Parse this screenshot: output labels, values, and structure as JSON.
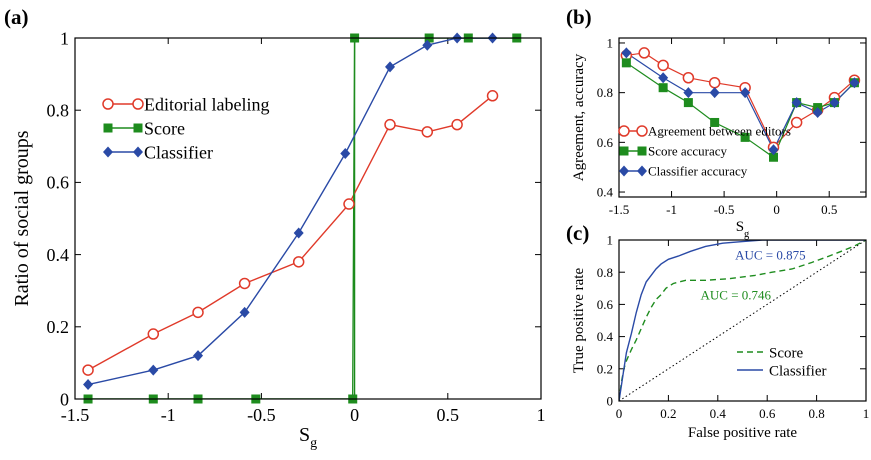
{
  "chart_data": [
    {
      "panel": "(a)",
      "type": "line",
      "xlabel": "S",
      "xlabel_sub": "g",
      "ylabel": "Ratio of social groups",
      "xlim": [
        -1.5,
        1
      ],
      "ylim": [
        0,
        1
      ],
      "xticks": [
        -1.5,
        -1,
        -0.5,
        0,
        0.5,
        1
      ],
      "xtick_labels": [
        "-1.5",
        "-1",
        "-0.5",
        "0",
        "0.5",
        "1"
      ],
      "yticks": [
        0,
        0.2,
        0.4,
        0.6,
        0.8,
        1
      ],
      "ytick_labels": [
        "0",
        "0.2",
        "0.4",
        "0.6",
        "0.8",
        "1"
      ],
      "legend_position": "center-left",
      "vline_x": 0,
      "vline_color": "#1a8a1a",
      "series": [
        {
          "name": "Editorial labeling",
          "marker": "circle-open",
          "color": "#e03a2a",
          "x": [
            -1.43,
            -1.08,
            -0.84,
            -0.59,
            -0.3,
            -0.03,
            0.19,
            0.39,
            0.55,
            0.74
          ],
          "y": [
            0.08,
            0.18,
            0.24,
            0.32,
            0.38,
            0.54,
            0.76,
            0.74,
            0.76,
            0.84
          ]
        },
        {
          "name": "Score",
          "marker": "square",
          "color": "#1e8c1e",
          "x": [
            -1.43,
            -1.08,
            -0.84,
            -0.53,
            -0.01,
            0.0,
            0.4,
            0.61,
            0.87
          ],
          "y": [
            0,
            0,
            0,
            0,
            0,
            1,
            1,
            1,
            1
          ]
        },
        {
          "name": "Classifier",
          "marker": "diamond",
          "color": "#2a4aa6",
          "x": [
            -1.43,
            -1.08,
            -0.84,
            -0.59,
            -0.3,
            -0.05,
            0.19,
            0.39,
            0.55,
            0.74
          ],
          "y": [
            0.04,
            0.08,
            0.12,
            0.24,
            0.46,
            0.68,
            0.92,
            0.98,
            1.0,
            1.0
          ]
        }
      ]
    },
    {
      "panel": "(b)",
      "type": "line",
      "xlabel": "S",
      "xlabel_sub": "g",
      "ylabel": "Agreement, accuracy",
      "xlim": [
        -1.5,
        0.85
      ],
      "ylim": [
        0.38,
        1.02
      ],
      "xticks": [
        -1.5,
        -1,
        -0.5,
        0,
        0.5
      ],
      "xtick_labels": [
        "-1.5",
        "-1",
        "-0.5",
        "0",
        "0.5"
      ],
      "yticks": [
        0.4,
        0.6,
        0.8,
        1
      ],
      "ytick_labels": [
        "0.4",
        "0.6",
        "0.8",
        "1"
      ],
      "legend_position": "bottom",
      "series": [
        {
          "name": "Agreement between editors",
          "marker": "circle-open",
          "color": "#e03a2a",
          "x": [
            -1.43,
            -1.26,
            -1.08,
            -0.84,
            -0.59,
            -0.3,
            -0.03,
            0.19,
            0.39,
            0.55,
            0.74
          ],
          "y": [
            0.95,
            0.96,
            0.91,
            0.86,
            0.84,
            0.82,
            0.58,
            0.68,
            0.73,
            0.78,
            0.85
          ]
        },
        {
          "name": "Score accuracy",
          "marker": "square",
          "color": "#1e8c1e",
          "x": [
            -1.43,
            -1.08,
            -0.84,
            -0.59,
            -0.3,
            -0.03,
            0.19,
            0.39,
            0.55,
            0.74
          ],
          "y": [
            0.92,
            0.82,
            0.76,
            0.68,
            0.62,
            0.54,
            0.76,
            0.74,
            0.76,
            0.84
          ]
        },
        {
          "name": "Classifier accuracy",
          "marker": "diamond",
          "color": "#2a4aa6",
          "x": [
            -1.43,
            -1.08,
            -0.84,
            -0.59,
            -0.3,
            -0.03,
            0.19,
            0.39,
            0.55,
            0.74
          ],
          "y": [
            0.96,
            0.86,
            0.8,
            0.8,
            0.8,
            0.57,
            0.76,
            0.72,
            0.76,
            0.84
          ]
        }
      ]
    },
    {
      "panel": "(c)",
      "type": "line",
      "xlabel": "False positive rate",
      "ylabel": "True positive rate",
      "xlim": [
        0,
        1
      ],
      "ylim": [
        0,
        1
      ],
      "xticks": [
        0,
        0.2,
        0.4,
        0.6,
        0.8,
        1
      ],
      "xtick_labels": [
        "0",
        "0.2",
        "0.4",
        "0.6",
        "0.8",
        "1"
      ],
      "yticks": [
        0,
        0.2,
        0.4,
        0.6,
        0.8,
        1
      ],
      "ytick_labels": [
        "0",
        "0.2",
        "0.4",
        "0.6",
        "0.8",
        "1"
      ],
      "legend_position": "bottom-right",
      "annotations": [
        {
          "text": "AUC = 0.875",
          "color": "#2a4aa6",
          "x": 0.47,
          "y": 0.88
        },
        {
          "text": "AUC = 0.746",
          "color": "#1e8c1e",
          "x": 0.33,
          "y": 0.63
        }
      ],
      "diagonal": true,
      "series": [
        {
          "name": "Score",
          "style": "dashed",
          "color": "#1e8c1e",
          "x": [
            0,
            0.01,
            0.02,
            0.03,
            0.05,
            0.07,
            0.09,
            0.11,
            0.13,
            0.15,
            0.17,
            0.19,
            0.22,
            0.27,
            0.35,
            0.45,
            0.55,
            0.62,
            0.7,
            0.78,
            0.85,
            0.9,
            0.95,
            1.0
          ],
          "y": [
            0,
            0.12,
            0.2,
            0.25,
            0.32,
            0.38,
            0.45,
            0.52,
            0.58,
            0.63,
            0.66,
            0.7,
            0.73,
            0.75,
            0.75,
            0.76,
            0.78,
            0.8,
            0.82,
            0.86,
            0.9,
            0.93,
            0.96,
            1.0
          ]
        },
        {
          "name": "Classifier",
          "style": "solid",
          "color": "#2a4aa6",
          "x": [
            0,
            0.01,
            0.02,
            0.03,
            0.05,
            0.07,
            0.09,
            0.11,
            0.13,
            0.15,
            0.17,
            0.2,
            0.24,
            0.29,
            0.35,
            0.42,
            0.5,
            0.58,
            0.6,
            1.0
          ],
          "y": [
            0,
            0.1,
            0.2,
            0.3,
            0.42,
            0.55,
            0.66,
            0.74,
            0.78,
            0.82,
            0.85,
            0.88,
            0.9,
            0.93,
            0.96,
            0.98,
            0.99,
            1.0,
            1.0,
            1.0
          ]
        }
      ]
    }
  ]
}
